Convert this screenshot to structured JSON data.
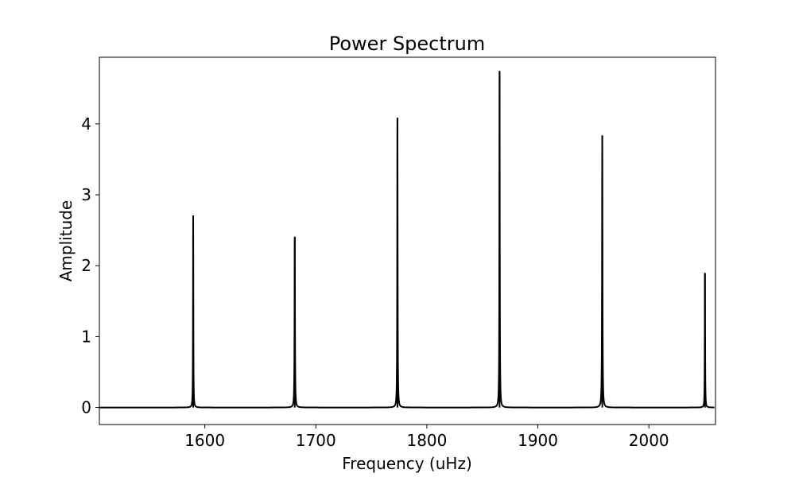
{
  "chart_data": {
    "type": "line",
    "title": "Power Spectrum",
    "xlabel": "Frequency (uHz)",
    "ylabel": "Amplitude",
    "xlim": [
      1505,
      2060
    ],
    "ylim": [
      -0.24,
      4.94
    ],
    "xticks": [
      1600,
      1700,
      1800,
      1900,
      2000
    ],
    "yticks": [
      0,
      1,
      2,
      3,
      4
    ],
    "grid": false,
    "series": [
      {
        "color": "#000000",
        "peaks": [
          {
            "x": 1589.5,
            "y": 2.7,
            "width": 0.35
          },
          {
            "x": 1681.0,
            "y": 2.4,
            "width": 0.45
          },
          {
            "x": 1773.5,
            "y": 4.08,
            "width": 0.4
          },
          {
            "x": 1865.5,
            "y": 4.74,
            "width": 0.4
          },
          {
            "x": 1958.0,
            "y": 3.83,
            "width": 0.45
          },
          {
            "x": 2050.5,
            "y": 1.89,
            "width": 0.35
          }
        ]
      }
    ]
  }
}
